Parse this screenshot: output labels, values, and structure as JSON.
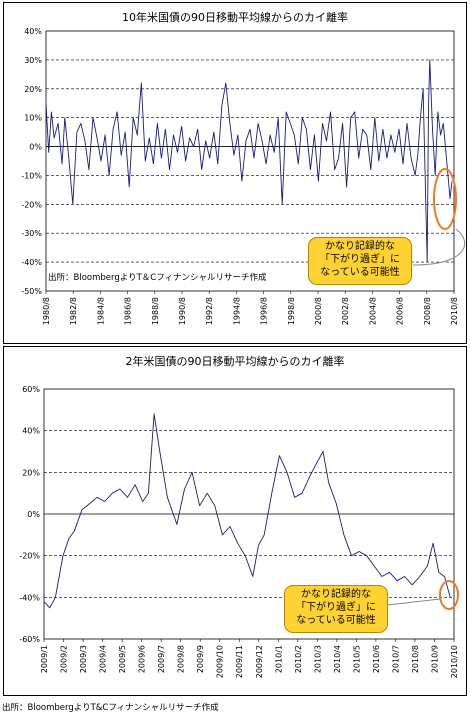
{
  "chart_data": [
    {
      "type": "line",
      "title": "10年米国債の90日移動平均線からのカイ離率",
      "ylim": [
        -50,
        40
      ],
      "y_ticks": [
        "-50%",
        "-40%",
        "-30%",
        "-20%",
        "-10%",
        "0%",
        "10%",
        "20%",
        "30%",
        "40%"
      ],
      "y_tick_values": [
        -50,
        -40,
        -30,
        -20,
        -10,
        0,
        10,
        20,
        30,
        40
      ],
      "x_ticks": [
        "1980/8",
        "1982/8",
        "1984/8",
        "1986/8",
        "1988/8",
        "1990/8",
        "1992/8",
        "1994/8",
        "1996/8",
        "1998/8",
        "2000/8",
        "2002/8",
        "2004/8",
        "2006/8",
        "2008/8",
        "2010/8"
      ],
      "xlim": [
        1980.6,
        2011.0
      ],
      "grid": "horizontal-dashed",
      "series_color": "#1a1a8c",
      "series": [
        {
          "x": [
            1980.6,
            1980.8,
            1981.0,
            1981.2,
            1981.5,
            1981.8,
            1982.0,
            1982.3,
            1982.6,
            1982.9,
            1983.2,
            1983.5,
            1983.8,
            1984.1,
            1984.4,
            1984.7,
            1985.0,
            1985.3,
            1985.6,
            1985.9,
            1986.2,
            1986.5,
            1986.8,
            1987.1,
            1987.4,
            1987.7,
            1988.0,
            1988.3,
            1988.6,
            1988.9,
            1989.2,
            1989.5,
            1989.8,
            1990.1,
            1990.4,
            1990.7,
            1991.0,
            1991.3,
            1991.6,
            1991.9,
            1992.2,
            1992.5,
            1992.8,
            1993.1,
            1993.4,
            1993.7,
            1994.0,
            1994.3,
            1994.6,
            1994.9,
            1995.2,
            1995.5,
            1995.8,
            1996.1,
            1996.4,
            1996.7,
            1997.0,
            1997.3,
            1997.6,
            1997.9,
            1998.2,
            1998.5,
            1998.8,
            1999.1,
            1999.4,
            1999.7,
            2000.0,
            2000.3,
            2000.6,
            2000.9,
            2001.2,
            2001.5,
            2001.8,
            2002.1,
            2002.4,
            2002.7,
            2003.0,
            2003.3,
            2003.6,
            2003.9,
            2004.2,
            2004.5,
            2004.8,
            2005.1,
            2005.4,
            2005.7,
            2006.0,
            2006.3,
            2006.6,
            2006.9,
            2007.2,
            2007.5,
            2007.8,
            2008.1,
            2008.3,
            2008.5,
            2008.7,
            2008.9,
            2009.0,
            2009.1,
            2009.2,
            2009.4,
            2009.6,
            2009.8,
            2010.0,
            2010.2,
            2010.4,
            2010.55,
            2010.7,
            2010.85
          ],
          "y": [
            15,
            -2,
            12,
            3,
            8,
            -6,
            10,
            -4,
            -20,
            5,
            8,
            2,
            -8,
            10,
            3,
            -5,
            4,
            -10,
            6,
            12,
            -3,
            5,
            -14,
            10,
            4,
            22,
            -5,
            3,
            -6,
            8,
            -4,
            6,
            -8,
            4,
            -2,
            7,
            -5,
            3,
            0,
            6,
            -8,
            2,
            -4,
            5,
            -6,
            14,
            22,
            8,
            -3,
            4,
            -12,
            2,
            6,
            -4,
            8,
            2,
            -6,
            4,
            -2,
            10,
            -20,
            12,
            8,
            4,
            -6,
            10,
            6,
            -8,
            4,
            -12,
            8,
            2,
            12,
            -8,
            -4,
            8,
            -14,
            10,
            12,
            -4,
            6,
            4,
            -8,
            10,
            -5,
            6,
            -4,
            4,
            -2,
            6,
            -6,
            8,
            -4,
            -10,
            -3,
            10,
            20,
            -20,
            -40,
            14,
            30,
            6,
            -10,
            12,
            4,
            8,
            -2,
            -10,
            -18,
            -12
          ]
        }
      ]
    },
    {
      "type": "line",
      "title": "2年米国債の90日移動平均線からのカイ離率",
      "ylim": [
        -60,
        60
      ],
      "y_ticks": [
        "-60%",
        "-40%",
        "-20%",
        "0%",
        "20%",
        "40%",
        "60%"
      ],
      "y_tick_values": [
        -60,
        -40,
        -20,
        0,
        20,
        40,
        60
      ],
      "x_ticks": [
        "2009/1",
        "2009/2",
        "2009/3",
        "2009/4",
        "2009/5",
        "2009/6",
        "2009/7",
        "2009/8",
        "2009/9",
        "2009/10",
        "2009/11",
        "2009/12",
        "2010/1",
        "2010/2",
        "2010/3",
        "2010/4",
        "2010/5",
        "2010/6",
        "2010/7",
        "2010/8",
        "2010/9",
        "2010/10"
      ],
      "xlim": [
        0,
        21.6
      ],
      "grid": "horizontal-dashed",
      "series_color": "#1a1a8c",
      "series": [
        {
          "x": [
            0,
            0.3,
            0.6,
            0.8,
            1.0,
            1.3,
            1.6,
            2.0,
            2.4,
            2.8,
            3.2,
            3.6,
            4.0,
            4.4,
            4.8,
            5.2,
            5.5,
            5.8,
            6.1,
            6.5,
            7.0,
            7.4,
            7.8,
            8.2,
            8.6,
            9.0,
            9.4,
            9.8,
            10.2,
            10.6,
            11.0,
            11.3,
            11.6,
            12.0,
            12.4,
            12.8,
            13.2,
            13.6,
            14.0,
            14.4,
            14.7,
            15.0,
            15.4,
            15.8,
            16.2,
            16.6,
            17.0,
            17.4,
            17.8,
            18.2,
            18.6,
            19.0,
            19.4,
            19.8,
            20.2,
            20.5,
            20.8,
            21.1,
            21.4
          ],
          "y": [
            -42,
            -45,
            -40,
            -30,
            -20,
            -12,
            -8,
            2,
            5,
            8,
            6,
            10,
            12,
            8,
            14,
            6,
            10,
            48,
            30,
            8,
            -5,
            12,
            20,
            4,
            10,
            4,
            -10,
            -6,
            -14,
            -20,
            -30,
            -15,
            -10,
            10,
            28,
            20,
            8,
            10,
            18,
            25,
            30,
            15,
            5,
            -10,
            -20,
            -18,
            -20,
            -25,
            -30,
            -28,
            -32,
            -30,
            -34,
            -30,
            -25,
            -14,
            -28,
            -30,
            -40
          ]
        }
      ]
    }
  ],
  "panel1": {
    "source": "出所：BloombergよりT＆Cフィナンシャルリサーチ作成",
    "callout": [
      "かなり記録的な",
      "「下がり過ぎ」に",
      "なっている可能性"
    ]
  },
  "panel2": {
    "callout": [
      "かなり記録的な",
      "「下がり過ぎ」に",
      "なっている可能性"
    ]
  },
  "footer": {
    "source": "出所：BloombergよりT&Cフィナンシャルリサーチ作成"
  },
  "colors": {
    "line": "#1a1a8c",
    "highlight": "#f07a20",
    "callout_fill": "#ffd233"
  }
}
